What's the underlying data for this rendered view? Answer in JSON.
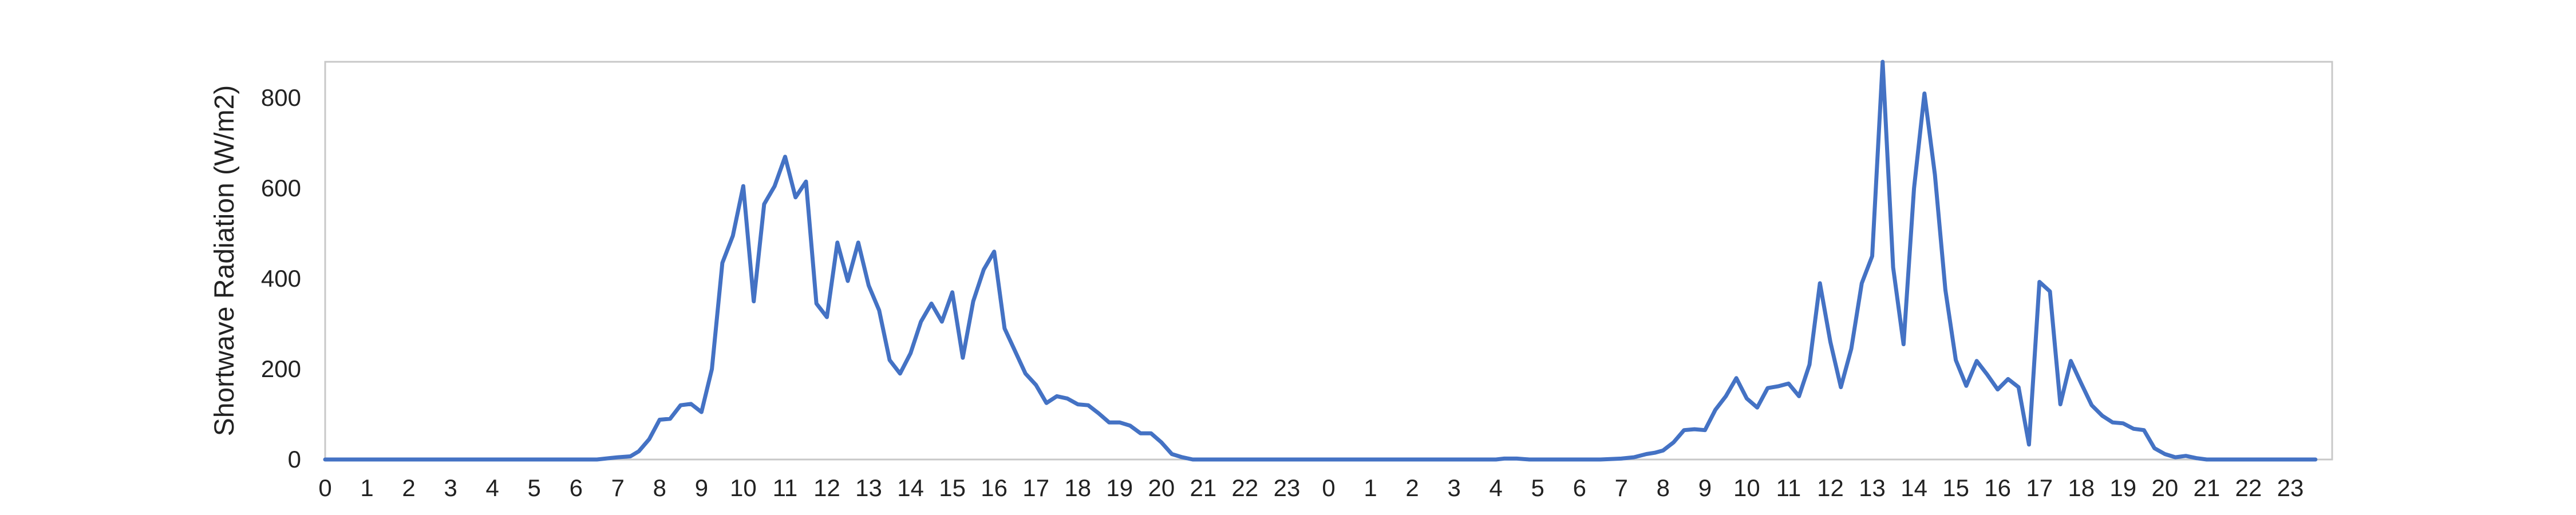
{
  "chart_data": {
    "type": "line",
    "ylabel": "Shortwave Radiation (W/m2)",
    "xlabel": "",
    "ylim": [
      0,
      880
    ],
    "y_ticks": [
      0,
      200,
      400,
      600,
      800
    ],
    "x_tick_labels": [
      "0",
      "1",
      "2",
      "3",
      "4",
      "5",
      "6",
      "7",
      "8",
      "9",
      "10",
      "11",
      "12",
      "13",
      "14",
      "15",
      "16",
      "17",
      "18",
      "19",
      "20",
      "21",
      "22",
      "23",
      "0",
      "1",
      "2",
      "3",
      "4",
      "5",
      "6",
      "7",
      "8",
      "9",
      "10",
      "11",
      "12",
      "13",
      "14",
      "15",
      "16",
      "17",
      "18",
      "19",
      "20",
      "21",
      "22",
      "23"
    ],
    "x_unit": "hour of day (two consecutive days)",
    "grid": false,
    "legend": "none",
    "series": [
      {
        "color": "#4472c4",
        "points": [
          [
            0,
            0
          ],
          [
            6.5,
            0
          ],
          [
            6.8,
            3
          ],
          [
            7.0,
            5
          ],
          [
            7.3,
            7
          ],
          [
            7.5,
            18
          ],
          [
            7.75,
            45
          ],
          [
            8.0,
            88
          ],
          [
            8.25,
            90
          ],
          [
            8.5,
            120
          ],
          [
            8.75,
            123
          ],
          [
            9.0,
            105
          ],
          [
            9.25,
            200
          ],
          [
            9.5,
            435
          ],
          [
            9.75,
            495
          ],
          [
            10.0,
            605
          ],
          [
            10.25,
            350
          ],
          [
            10.5,
            565
          ],
          [
            10.75,
            605
          ],
          [
            11.0,
            670
          ],
          [
            11.25,
            580
          ],
          [
            11.5,
            615
          ],
          [
            11.75,
            345
          ],
          [
            12.0,
            315
          ],
          [
            12.25,
            480
          ],
          [
            12.5,
            395
          ],
          [
            12.75,
            480
          ],
          [
            13.0,
            385
          ],
          [
            13.25,
            330
          ],
          [
            13.5,
            220
          ],
          [
            13.75,
            190
          ],
          [
            14.0,
            235
          ],
          [
            14.25,
            305
          ],
          [
            14.5,
            345
          ],
          [
            14.75,
            305
          ],
          [
            15.0,
            370
          ],
          [
            15.25,
            225
          ],
          [
            15.5,
            350
          ],
          [
            15.75,
            420
          ],
          [
            16.0,
            460
          ],
          [
            16.25,
            290
          ],
          [
            16.5,
            240
          ],
          [
            16.75,
            190
          ],
          [
            17.0,
            165
          ],
          [
            17.25,
            125
          ],
          [
            17.5,
            140
          ],
          [
            17.75,
            135
          ],
          [
            18.0,
            122
          ],
          [
            18.25,
            120
          ],
          [
            18.5,
            102
          ],
          [
            18.75,
            82
          ],
          [
            19.0,
            82
          ],
          [
            19.25,
            75
          ],
          [
            19.5,
            58
          ],
          [
            19.75,
            58
          ],
          [
            20.0,
            38
          ],
          [
            20.25,
            12
          ],
          [
            20.5,
            5
          ],
          [
            20.75,
            0
          ],
          [
            24,
            0
          ],
          [
            28.0,
            0
          ],
          [
            28.2,
            2
          ],
          [
            28.5,
            2
          ],
          [
            28.8,
            0
          ],
          [
            30.5,
            0
          ],
          [
            31.0,
            2
          ],
          [
            31.3,
            5
          ],
          [
            31.6,
            12
          ],
          [
            31.8,
            15
          ],
          [
            32.0,
            20
          ],
          [
            32.25,
            38
          ],
          [
            32.5,
            65
          ],
          [
            32.75,
            67
          ],
          [
            33.0,
            65
          ],
          [
            33.25,
            110
          ],
          [
            33.5,
            140
          ],
          [
            33.75,
            180
          ],
          [
            34.0,
            135
          ],
          [
            34.25,
            115
          ],
          [
            34.5,
            158
          ],
          [
            34.75,
            162
          ],
          [
            35.0,
            168
          ],
          [
            35.25,
            140
          ],
          [
            35.5,
            210
          ],
          [
            35.75,
            390
          ],
          [
            36.0,
            260
          ],
          [
            36.25,
            160
          ],
          [
            36.5,
            245
          ],
          [
            36.75,
            390
          ],
          [
            37.0,
            450
          ],
          [
            37.25,
            880
          ],
          [
            37.5,
            425
          ],
          [
            37.75,
            255
          ],
          [
            38.0,
            600
          ],
          [
            38.25,
            810
          ],
          [
            38.5,
            630
          ],
          [
            38.75,
            375
          ],
          [
            39.0,
            220
          ],
          [
            39.25,
            163
          ],
          [
            39.5,
            218
          ],
          [
            39.75,
            188
          ],
          [
            40.0,
            155
          ],
          [
            40.25,
            178
          ],
          [
            40.5,
            160
          ],
          [
            40.75,
            33
          ],
          [
            41.0,
            393
          ],
          [
            41.25,
            372
          ],
          [
            41.5,
            122
          ],
          [
            41.75,
            218
          ],
          [
            42.0,
            168
          ],
          [
            42.25,
            120
          ],
          [
            42.5,
            97
          ],
          [
            42.75,
            82
          ],
          [
            43.0,
            80
          ],
          [
            43.25,
            68
          ],
          [
            43.5,
            65
          ],
          [
            43.75,
            25
          ],
          [
            44.0,
            12
          ],
          [
            44.25,
            5
          ],
          [
            44.5,
            8
          ],
          [
            44.75,
            3
          ],
          [
            45.0,
            0
          ],
          [
            47.6,
            0
          ]
        ]
      }
    ]
  }
}
